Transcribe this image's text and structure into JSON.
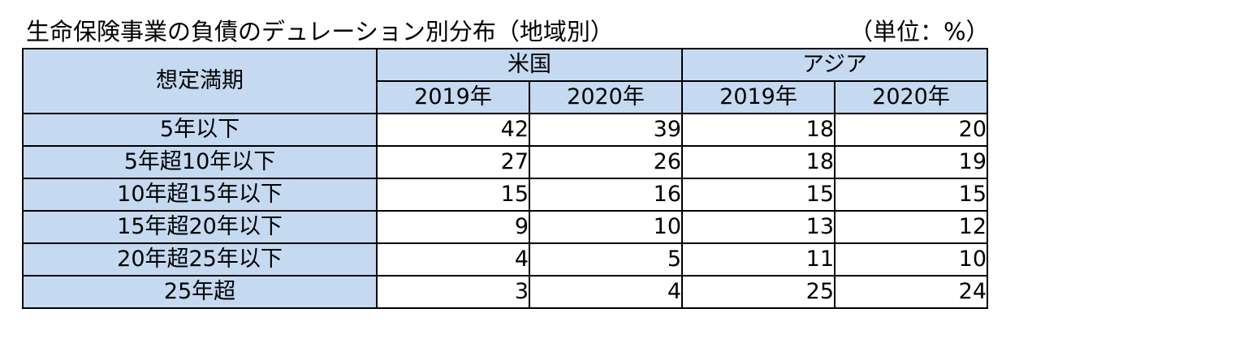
{
  "title": "生命保険事業の負債のデュレーション別分布（地域別）",
  "unit": "（単位：%）",
  "table": {
    "corner_label": "想定満期",
    "regions": [
      "米国",
      "アジア"
    ],
    "years": [
      "2019年",
      "2020年",
      "2019年",
      "2020年"
    ],
    "rows": [
      {
        "label": "5年以下",
        "values": [
          "42",
          "39",
          "18",
          "20"
        ]
      },
      {
        "label": "5年超10年以下",
        "values": [
          "27",
          "26",
          "18",
          "19"
        ]
      },
      {
        "label": "10年超15年以下",
        "values": [
          "15",
          "16",
          "15",
          "15"
        ]
      },
      {
        "label": "15年超20年以下",
        "values": [
          "9",
          "10",
          "13",
          "12"
        ]
      },
      {
        "label": "20年超25年以下",
        "values": [
          "4",
          "5",
          "11",
          "10"
        ]
      },
      {
        "label": "25年超",
        "values": [
          "3",
          "4",
          "25",
          "24"
        ]
      }
    ]
  },
  "colors": {
    "header_fill": "#c5d9f1",
    "border": "#000000"
  }
}
